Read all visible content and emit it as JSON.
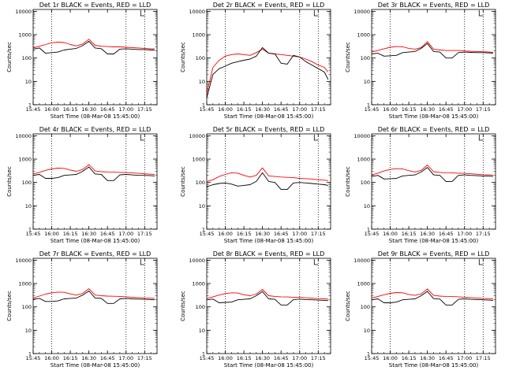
{
  "figure": {
    "background": "#ffffff",
    "series_colors": {
      "events": "#000000",
      "lld": "#ff0000"
    },
    "marker_lines": [
      "16:00",
      "17:00",
      "17:15"
    ],
    "y_scale": "log"
  },
  "chart_data": [
    {
      "type": "line",
      "title": "Det 1r BLACK = Events, RED = LLD",
      "xlabel": "Start Time (08-Mar-08 15:45:00)",
      "ylabel": "Counts/sec",
      "x_tick_labels": [
        "15:45",
        "16:00",
        "16:15",
        "16:30",
        "16:45",
        "17:00",
        "17:15"
      ],
      "y_tick_labels": [
        "1",
        "10",
        "100",
        "1000",
        "10000"
      ],
      "xlim": [
        "15:45",
        "17:25"
      ],
      "ylim": [
        1,
        12000
      ],
      "x": [
        "15:45",
        "15:50",
        "15:55",
        "16:00",
        "16:05",
        "16:10",
        "16:15",
        "16:20",
        "16:25",
        "16:30",
        "16:35",
        "16:40",
        "16:45",
        "16:50",
        "16:55",
        "17:00",
        "17:05",
        "17:10",
        "17:15",
        "17:20",
        "17:23"
      ],
      "series": [
        {
          "name": "Events",
          "color": "#000000",
          "values": [
            240,
            270,
            160,
            170,
            180,
            220,
            240,
            260,
            340,
            520,
            270,
            250,
            150,
            150,
            240,
            250,
            240,
            230,
            230,
            220,
            220
          ]
        },
        {
          "name": "LLD",
          "color": "#ff0000",
          "values": [
            270,
            320,
            380,
            450,
            480,
            460,
            380,
            330,
            400,
            640,
            350,
            320,
            310,
            300,
            300,
            290,
            280,
            270,
            260,
            250,
            250
          ]
        }
      ]
    },
    {
      "type": "line",
      "title": "Det 2r BLACK = Events, RED = LLD",
      "xlabel": "Start Time (08-Mar-08 15:45:00)",
      "ylabel": "Counts/sec",
      "x_tick_labels": [
        "15:45",
        "16:00",
        "16:15",
        "16:30",
        "16:45",
        "17:00",
        "17:15"
      ],
      "y_tick_labels": [
        "1",
        "10",
        "100",
        "1000",
        "10000"
      ],
      "xlim": [
        "15:45",
        "17:25"
      ],
      "ylim": [
        1,
        12000
      ],
      "x": [
        "15:45",
        "15:50",
        "15:55",
        "16:00",
        "16:05",
        "16:10",
        "16:15",
        "16:20",
        "16:25",
        "16:30",
        "16:35",
        "16:40",
        "16:45",
        "16:50",
        "16:55",
        "17:00",
        "17:05",
        "17:10",
        "17:15",
        "17:20",
        "17:23"
      ],
      "series": [
        {
          "name": "Events",
          "color": "#000000",
          "values": [
            2,
            20,
            35,
            45,
            60,
            70,
            80,
            90,
            120,
            280,
            160,
            150,
            60,
            55,
            130,
            110,
            70,
            50,
            35,
            25,
            12
          ]
        },
        {
          "name": "LLD",
          "color": "#ff0000",
          "values": [
            3,
            40,
            80,
            120,
            140,
            150,
            140,
            130,
            170,
            240,
            160,
            150,
            140,
            130,
            120,
            110,
            90,
            70,
            50,
            40,
            25
          ]
        }
      ]
    },
    {
      "type": "line",
      "title": "Det 3r BLACK = Events, RED = LLD",
      "xlabel": "Start Time (08-Mar-08 15:45:00)",
      "ylabel": "Counts/sec",
      "x_tick_labels": [
        "15:45",
        "16:00",
        "16:15",
        "16:30",
        "16:45",
        "17:00",
        "17:15"
      ],
      "y_tick_labels": [
        "1",
        "10",
        "100",
        "1000",
        "10000"
      ],
      "xlim": [
        "15:45",
        "17:25"
      ],
      "ylim": [
        1,
        12000
      ],
      "x": [
        "15:45",
        "15:50",
        "15:55",
        "16:00",
        "16:05",
        "16:10",
        "16:15",
        "16:20",
        "16:25",
        "16:30",
        "16:35",
        "16:40",
        "16:45",
        "16:50",
        "16:55",
        "17:00",
        "17:05",
        "17:10",
        "17:15",
        "17:20",
        "17:23"
      ],
      "series": [
        {
          "name": "Events",
          "color": "#000000",
          "values": [
            150,
            160,
            120,
            125,
            130,
            170,
            180,
            190,
            260,
            420,
            190,
            180,
            100,
            100,
            170,
            180,
            175,
            170,
            170,
            165,
            160
          ]
        },
        {
          "name": "LLD",
          "color": "#ff0000",
          "values": [
            180,
            210,
            250,
            290,
            310,
            300,
            260,
            240,
            280,
            500,
            240,
            220,
            210,
            210,
            210,
            200,
            195,
            190,
            185,
            180,
            175
          ]
        }
      ]
    },
    {
      "type": "line",
      "title": "Det 4r BLACK = Events, RED = LLD",
      "xlabel": "Start Time (08-Mar-08 15:45:00)",
      "ylabel": "Counts/sec",
      "x_tick_labels": [
        "15:45",
        "16:00",
        "16:15",
        "16:30",
        "16:45",
        "17:00",
        "17:15"
      ],
      "y_tick_labels": [
        "1",
        "10",
        "100",
        "1000",
        "10000"
      ],
      "xlim": [
        "15:45",
        "17:25"
      ],
      "ylim": [
        1,
        12000
      ],
      "x": [
        "15:45",
        "15:50",
        "15:55",
        "16:00",
        "16:05",
        "16:10",
        "16:15",
        "16:20",
        "16:25",
        "16:30",
        "16:35",
        "16:40",
        "16:45",
        "16:50",
        "16:55",
        "17:00",
        "17:05",
        "17:10",
        "17:15",
        "17:20",
        "17:23"
      ],
      "series": [
        {
          "name": "Events",
          "color": "#000000",
          "values": [
            200,
            220,
            150,
            150,
            160,
            200,
            210,
            220,
            300,
            460,
            230,
            220,
            120,
            120,
            210,
            220,
            210,
            200,
            200,
            195,
            190
          ]
        },
        {
          "name": "LLD",
          "color": "#ff0000",
          "values": [
            230,
            270,
            330,
            380,
            410,
            400,
            340,
            300,
            360,
            580,
            310,
            290,
            280,
            275,
            270,
            265,
            255,
            245,
            235,
            225,
            220
          ]
        }
      ]
    },
    {
      "type": "line",
      "title": "Det 5r BLACK = Events, RED = LLD",
      "xlabel": "Start Time (08-Mar-08 15:45:00)",
      "ylabel": "Counts/sec",
      "x_tick_labels": [
        "15:45",
        "16:00",
        "16:15",
        "16:30",
        "16:45",
        "17:00",
        "17:15"
      ],
      "y_tick_labels": [
        "1",
        "10",
        "100",
        "1000",
        "10000"
      ],
      "xlim": [
        "15:45",
        "17:25"
      ],
      "ylim": [
        1,
        12000
      ],
      "x": [
        "15:45",
        "15:50",
        "15:55",
        "16:00",
        "16:05",
        "16:10",
        "16:15",
        "16:20",
        "16:25",
        "16:30",
        "16:35",
        "16:40",
        "16:45",
        "16:50",
        "16:55",
        "17:00",
        "17:05",
        "17:10",
        "17:15",
        "17:20",
        "17:23"
      ],
      "series": [
        {
          "name": "Events",
          "color": "#000000",
          "values": [
            65,
            80,
            90,
            95,
            85,
            70,
            75,
            80,
            110,
            260,
            110,
            100,
            50,
            50,
            95,
            100,
            95,
            90,
            85,
            80,
            75
          ]
        },
        {
          "name": "LLD",
          "color": "#ff0000",
          "values": [
            110,
            130,
            180,
            220,
            260,
            250,
            200,
            170,
            200,
            420,
            190,
            180,
            170,
            165,
            160,
            150,
            145,
            140,
            130,
            125,
            120
          ]
        }
      ]
    },
    {
      "type": "line",
      "title": "Det 6r BLACK = Events, RED = LLD",
      "xlabel": "Start Time (08-Mar-08 15:45:00)",
      "ylabel": "Counts/sec",
      "x_tick_labels": [
        "15:45",
        "16:00",
        "16:15",
        "16:30",
        "16:45",
        "17:00",
        "17:15"
      ],
      "y_tick_labels": [
        "1",
        "10",
        "100",
        "1000",
        "10000"
      ],
      "xlim": [
        "15:45",
        "17:25"
      ],
      "ylim": [
        1,
        12000
      ],
      "x": [
        "15:45",
        "15:50",
        "15:55",
        "16:00",
        "16:05",
        "16:10",
        "16:15",
        "16:20",
        "16:25",
        "16:30",
        "16:35",
        "16:40",
        "16:45",
        "16:50",
        "16:55",
        "17:00",
        "17:05",
        "17:10",
        "17:15",
        "17:20",
        "17:23"
      ],
      "series": [
        {
          "name": "Events",
          "color": "#000000",
          "values": [
            180,
            200,
            140,
            145,
            150,
            190,
            200,
            210,
            280,
            440,
            210,
            200,
            110,
            110,
            200,
            210,
            200,
            195,
            190,
            185,
            180
          ]
        },
        {
          "name": "LLD",
          "color": "#ff0000",
          "values": [
            210,
            250,
            310,
            360,
            390,
            380,
            320,
            280,
            330,
            560,
            290,
            270,
            260,
            255,
            250,
            245,
            235,
            225,
            215,
            210,
            205
          ]
        }
      ]
    },
    {
      "type": "line",
      "title": "Det 7r BLACK = Events, RED = LLD",
      "xlabel": "Start Time (08-Mar-08 15:45:00)",
      "ylabel": "Counts/sec",
      "x_tick_labels": [
        "15:45",
        "16:00",
        "16:15",
        "16:30",
        "16:45",
        "17:00",
        "17:15"
      ],
      "y_tick_labels": [
        "1",
        "10",
        "100",
        "1000",
        "10000"
      ],
      "xlim": [
        "15:45",
        "17:25"
      ],
      "ylim": [
        1,
        12000
      ],
      "x": [
        "15:45",
        "15:50",
        "15:55",
        "16:00",
        "16:05",
        "16:10",
        "16:15",
        "16:20",
        "16:25",
        "16:30",
        "16:35",
        "16:40",
        "16:45",
        "16:50",
        "16:55",
        "17:00",
        "17:05",
        "17:10",
        "17:15",
        "17:20",
        "17:23"
      ],
      "series": [
        {
          "name": "Events",
          "color": "#000000",
          "values": [
            210,
            230,
            170,
            170,
            180,
            220,
            230,
            240,
            320,
            480,
            240,
            230,
            140,
            140,
            220,
            230,
            220,
            215,
            210,
            205,
            200
          ]
        },
        {
          "name": "LLD",
          "color": "#ff0000",
          "values": [
            240,
            290,
            350,
            400,
            430,
            420,
            360,
            320,
            380,
            600,
            320,
            300,
            290,
            285,
            280,
            270,
            260,
            250,
            240,
            235,
            230
          ]
        }
      ]
    },
    {
      "type": "line",
      "title": "Det 8r BLACK = Events, RED = LLD",
      "xlabel": "Start Time (08-Mar-08 15:45:00)",
      "ylabel": "Counts/sec",
      "x_tick_labels": [
        "15:45",
        "16:00",
        "16:15",
        "16:30",
        "16:45",
        "17:00",
        "17:15"
      ],
      "y_tick_labels": [
        "1",
        "10",
        "100",
        "1000",
        "10000"
      ],
      "xlim": [
        "15:45",
        "17:25"
      ],
      "ylim": [
        1,
        12000
      ],
      "x": [
        "15:45",
        "15:50",
        "15:55",
        "16:00",
        "16:05",
        "16:10",
        "16:15",
        "16:20",
        "16:25",
        "16:30",
        "16:35",
        "16:40",
        "16:45",
        "16:50",
        "16:55",
        "17:00",
        "17:05",
        "17:10",
        "17:15",
        "17:20",
        "17:23"
      ],
      "series": [
        {
          "name": "Events",
          "color": "#000000",
          "values": [
            200,
            215,
            150,
            155,
            160,
            200,
            210,
            220,
            300,
            450,
            220,
            210,
            120,
            120,
            205,
            215,
            205,
            200,
            195,
            190,
            185
          ]
        },
        {
          "name": "LLD",
          "color": "#ff0000",
          "values": [
            230,
            270,
            320,
            370,
            400,
            390,
            330,
            300,
            350,
            560,
            300,
            280,
            270,
            265,
            260,
            255,
            245,
            235,
            225,
            220,
            215
          ]
        }
      ]
    },
    {
      "type": "line",
      "title": "Det 9r BLACK = Events, RED = LLD",
      "xlabel": "Start Time (08-Mar-08 15:45:00)",
      "ylabel": "Counts/sec",
      "x_tick_labels": [
        "15:45",
        "16:00",
        "16:15",
        "16:30",
        "16:45",
        "17:00",
        "17:15"
      ],
      "y_tick_labels": [
        "1",
        "10",
        "100",
        "1000",
        "10000"
      ],
      "xlim": [
        "15:45",
        "17:25"
      ],
      "ylim": [
        1,
        12000
      ],
      "x": [
        "15:45",
        "15:50",
        "15:55",
        "16:00",
        "16:05",
        "16:10",
        "16:15",
        "16:20",
        "16:25",
        "16:30",
        "16:35",
        "16:40",
        "16:45",
        "16:50",
        "16:55",
        "17:00",
        "17:05",
        "17:10",
        "17:15",
        "17:20",
        "17:23"
      ],
      "series": [
        {
          "name": "Events",
          "color": "#000000",
          "values": [
            200,
            220,
            150,
            150,
            160,
            200,
            210,
            220,
            300,
            460,
            225,
            215,
            120,
            120,
            210,
            220,
            210,
            205,
            200,
            195,
            190
          ]
        },
        {
          "name": "LLD",
          "color": "#ff0000",
          "values": [
            240,
            280,
            330,
            380,
            410,
            400,
            340,
            310,
            360,
            580,
            310,
            290,
            280,
            275,
            270,
            260,
            250,
            240,
            230,
            225,
            220
          ]
        }
      ]
    }
  ]
}
